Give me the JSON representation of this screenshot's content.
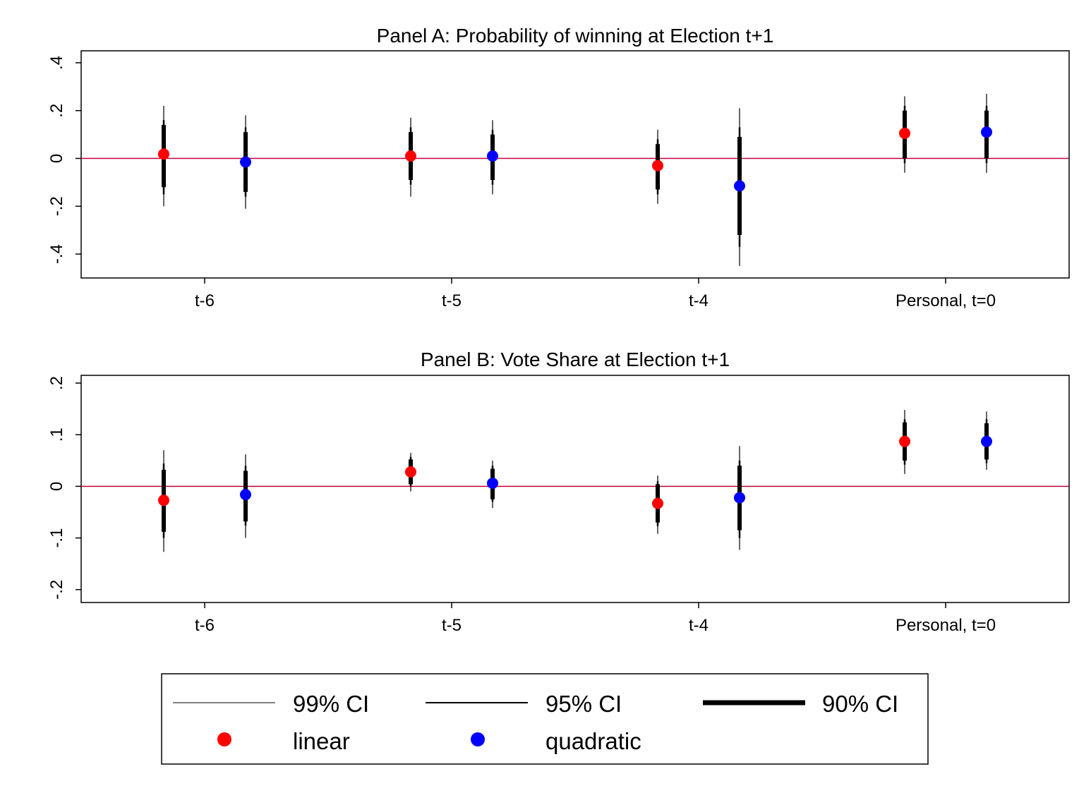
{
  "chart_data": [
    {
      "type": "scatter",
      "title": "Panel A: Probability of winning at Election t+1",
      "xlabel": "",
      "ylabel": "",
      "ylim": [
        -0.5,
        0.45
      ],
      "yticks": [
        -0.4,
        -0.2,
        0,
        0.2,
        0.4
      ],
      "ytick_labels": [
        "-.4",
        "-.2",
        "0",
        ".2",
        ".4"
      ],
      "categories": [
        "t-6",
        "t-5",
        "t-4",
        "Personal, t=0"
      ],
      "reference_line": 0,
      "series": [
        {
          "name": "linear",
          "color": "#ff0000",
          "points": [
            {
              "category": "t-6",
              "estimate": 0.018,
              "ci90": [
                -0.12,
                0.14
              ],
              "ci95": [
                -0.15,
                0.16
              ],
              "ci99": [
                -0.2,
                0.22
              ]
            },
            {
              "category": "t-5",
              "estimate": 0.01,
              "ci90": [
                -0.09,
                0.11
              ],
              "ci95": [
                -0.11,
                0.13
              ],
              "ci99": [
                -0.16,
                0.17
              ]
            },
            {
              "category": "t-4",
              "estimate": -0.03,
              "ci90": [
                -0.13,
                0.06
              ],
              "ci95": [
                -0.15,
                0.08
              ],
              "ci99": [
                -0.19,
                0.12
              ]
            },
            {
              "category": "Personal, t=0",
              "estimate": 0.105,
              "ci90": [
                0.0,
                0.2
              ],
              "ci95": [
                -0.02,
                0.22
              ],
              "ci99": [
                -0.06,
                0.26
              ]
            }
          ]
        },
        {
          "name": "quadratic",
          "color": "#0000ff",
          "points": [
            {
              "category": "t-6",
              "estimate": -0.015,
              "ci90": [
                -0.14,
                0.11
              ],
              "ci95": [
                -0.16,
                0.13
              ],
              "ci99": [
                -0.21,
                0.18
              ]
            },
            {
              "category": "t-5",
              "estimate": 0.01,
              "ci90": [
                -0.09,
                0.1
              ],
              "ci95": [
                -0.11,
                0.12
              ],
              "ci99": [
                -0.15,
                0.16
              ]
            },
            {
              "category": "t-4",
              "estimate": -0.115,
              "ci90": [
                -0.32,
                0.09
              ],
              "ci95": [
                -0.37,
                0.13
              ],
              "ci99": [
                -0.45,
                0.21
              ]
            },
            {
              "category": "Personal, t=0",
              "estimate": 0.11,
              "ci90": [
                0.0,
                0.2
              ],
              "ci95": [
                -0.02,
                0.22
              ],
              "ci99": [
                -0.06,
                0.27
              ]
            }
          ]
        }
      ]
    },
    {
      "type": "scatter",
      "title": "Panel B: Vote Share at Election t+1",
      "xlabel": "",
      "ylabel": "",
      "ylim": [
        -0.225,
        0.215
      ],
      "yticks": [
        -0.2,
        -0.1,
        0,
        0.1,
        0.2
      ],
      "ytick_labels": [
        "-.2",
        "-.1",
        "0",
        ".1",
        ".2"
      ],
      "categories": [
        "t-6",
        "t-5",
        "t-4",
        "Personal, t=0"
      ],
      "reference_line": 0,
      "series": [
        {
          "name": "linear",
          "color": "#ff0000",
          "points": [
            {
              "category": "t-6",
              "estimate": -0.027,
              "ci90": [
                -0.088,
                0.032
              ],
              "ci95": [
                -0.1,
                0.044
              ],
              "ci99": [
                -0.127,
                0.07
              ]
            },
            {
              "category": "t-5",
              "estimate": 0.028,
              "ci90": [
                0.004,
                0.052
              ],
              "ci95": [
                0.0,
                0.057
              ],
              "ci99": [
                -0.01,
                0.065
              ]
            },
            {
              "category": "t-4",
              "estimate": -0.033,
              "ci90": [
                -0.07,
                0.004
              ],
              "ci95": [
                -0.077,
                0.01
              ],
              "ci99": [
                -0.092,
                0.021
              ]
            },
            {
              "category": "Personal, t=0",
              "estimate": 0.087,
              "ci90": [
                0.05,
                0.124
              ],
              "ci95": [
                0.042,
                0.13
              ],
              "ci99": [
                0.024,
                0.148
              ]
            }
          ]
        },
        {
          "name": "quadratic",
          "color": "#0000ff",
          "points": [
            {
              "category": "t-6",
              "estimate": -0.016,
              "ci90": [
                -0.068,
                0.03
              ],
              "ci95": [
                -0.076,
                0.04
              ],
              "ci99": [
                -0.1,
                0.062
              ]
            },
            {
              "category": "t-5",
              "estimate": 0.006,
              "ci90": [
                -0.025,
                0.034
              ],
              "ci95": [
                -0.03,
                0.04
              ],
              "ci99": [
                -0.042,
                0.05
              ]
            },
            {
              "category": "t-4",
              "estimate": -0.022,
              "ci90": [
                -0.085,
                0.04
              ],
              "ci95": [
                -0.1,
                0.05
              ],
              "ci99": [
                -0.123,
                0.078
              ]
            },
            {
              "category": "Personal, t=0",
              "estimate": 0.087,
              "ci90": [
                0.052,
                0.122
              ],
              "ci95": [
                0.045,
                0.13
              ],
              "ci99": [
                0.032,
                0.145
              ]
            }
          ]
        }
      ]
    }
  ],
  "legend": {
    "placement": "bottom",
    "items": [
      {
        "label": "99% CI",
        "kind": "line",
        "weight": "thin"
      },
      {
        "label": "95% CI",
        "kind": "line",
        "weight": "medium"
      },
      {
        "label": "90% CI",
        "kind": "line",
        "weight": "thick"
      },
      {
        "label": "linear",
        "kind": "marker",
        "color": "#ff0000"
      },
      {
        "label": "quadratic",
        "kind": "marker",
        "color": "#0000ff"
      }
    ]
  },
  "colors": {
    "reference_line": "#c4003a",
    "ci_line": "#000000",
    "axis": "#000000"
  }
}
